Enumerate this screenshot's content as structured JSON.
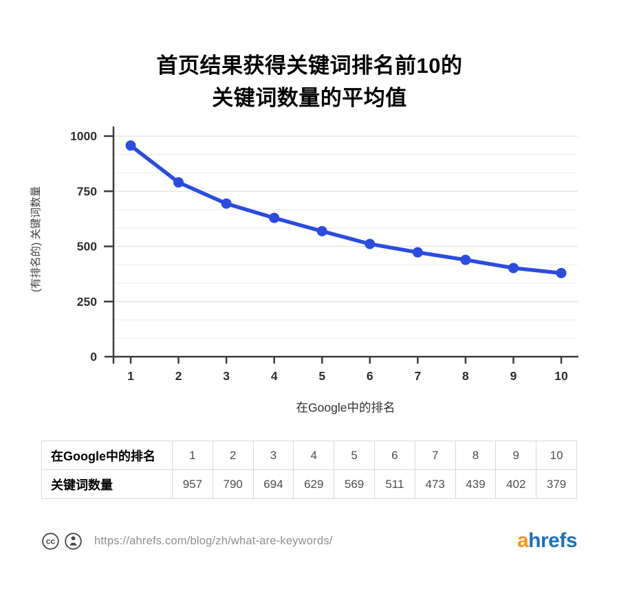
{
  "title": {
    "line1": "首页结果获得关键词排名前10的",
    "line2": "关键词数量的平均值"
  },
  "chart_data": {
    "type": "line",
    "title": "首页结果获得关键词排名前10的关键词数量的平均值",
    "x": [
      1,
      2,
      3,
      4,
      5,
      6,
      7,
      8,
      9,
      10
    ],
    "series": [
      {
        "name": "关键词数量",
        "values": [
          957,
          790,
          694,
          629,
          569,
          511,
          473,
          439,
          402,
          379
        ]
      }
    ],
    "xlabel": "在Google中的排名",
    "ylabel": "(有排名的) 关键词数量",
    "ylim": [
      0,
      1000
    ],
    "yticks": [
      0,
      250,
      500,
      750,
      1000
    ],
    "grid": "horizontal",
    "legend": "none",
    "line_color": "#2b4ce1",
    "axis_color": "#3b3b3b",
    "tick_label_color": "#2e2e2e",
    "major_grid_color": "#e5e5e5",
    "minor_grid_color": "#f1f1f1"
  },
  "table": {
    "rows": [
      {
        "label": "在Google中的排名",
        "values": [
          "1",
          "2",
          "3",
          "4",
          "5",
          "6",
          "7",
          "8",
          "9",
          "10"
        ]
      },
      {
        "label": "关键词数量",
        "values": [
          "957",
          "790",
          "694",
          "629",
          "569",
          "511",
          "473",
          "439",
          "402",
          "379"
        ]
      }
    ]
  },
  "footer": {
    "icons": [
      "cc-icon",
      "by-icon"
    ],
    "url": "https://ahrefs.com/blog/zh/what-are-keywords/",
    "logo_prefix": "a",
    "logo_rest": "hrefs",
    "logo_prefix_color": "#f7941e",
    "logo_rest_color": "#1e70b8",
    "icon_color": "#4a4a4a"
  }
}
